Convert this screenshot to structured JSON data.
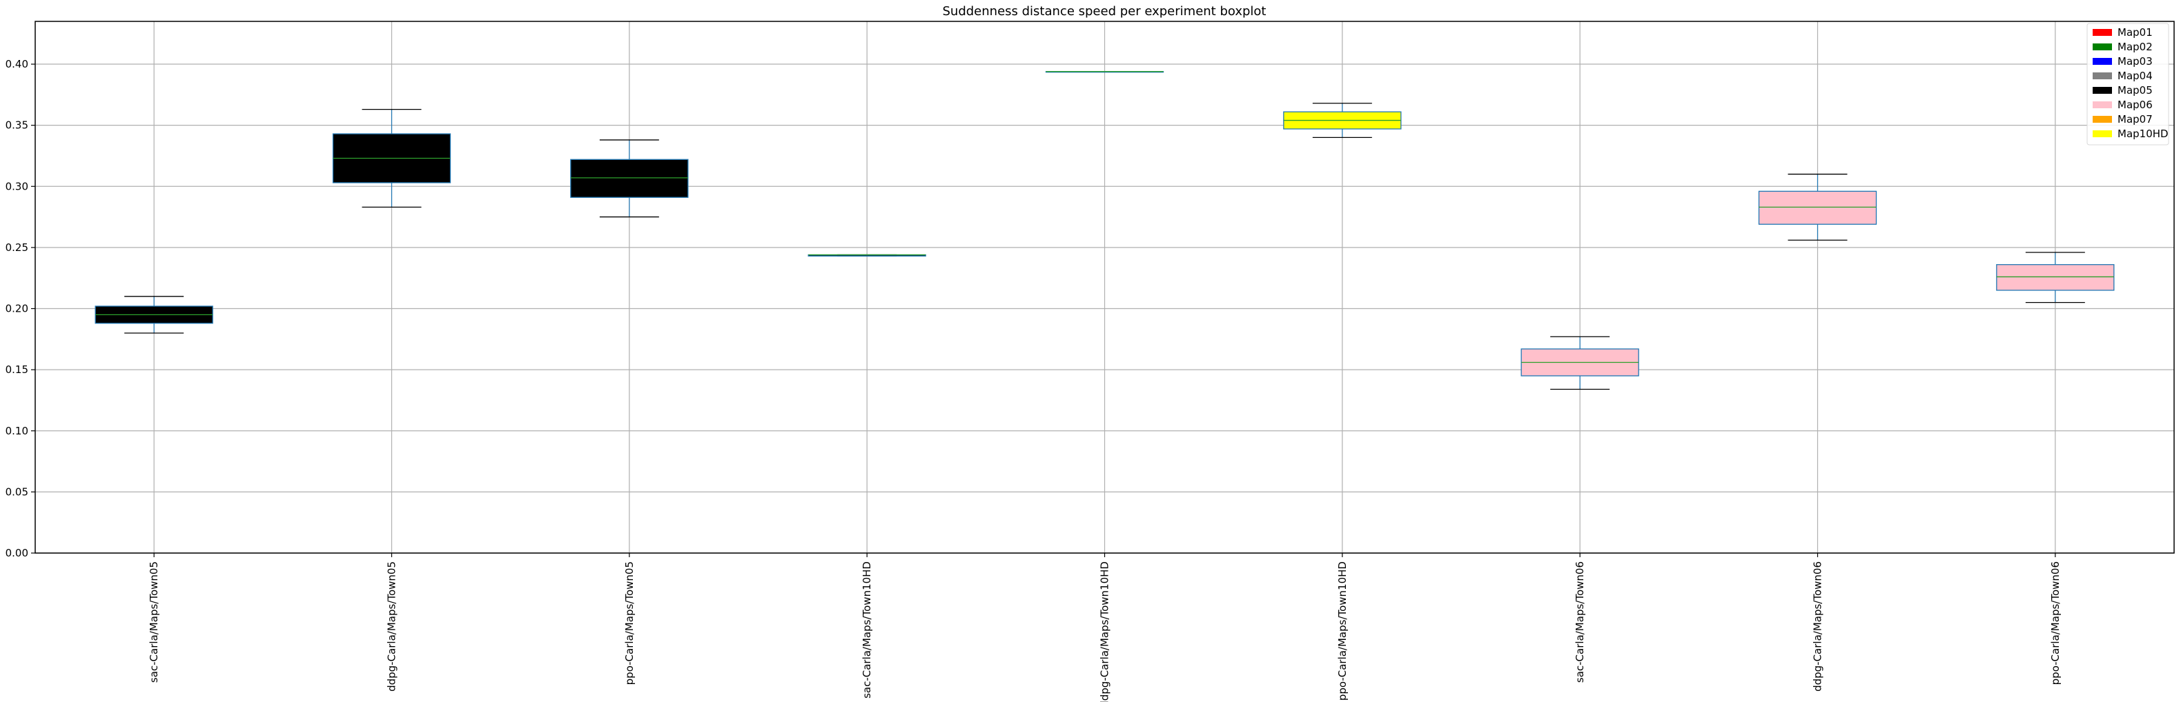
{
  "chart_data": {
    "type": "boxplot",
    "title": "Suddenness distance speed per experiment boxplot",
    "xlabel": "",
    "ylabel": "",
    "ylim": [
      0.0,
      0.435
    ],
    "yticks": [
      0.0,
      0.05,
      0.1,
      0.15,
      0.2,
      0.25,
      0.3,
      0.35,
      0.4
    ],
    "ytick_labels": [
      "0.00",
      "0.05",
      "0.10",
      "0.15",
      "0.20",
      "0.25",
      "0.30",
      "0.35",
      "0.40"
    ],
    "grid": true,
    "legend_placement": "top-right",
    "categories": [
      "sac-Carla/Maps/Town05",
      "ddpg-Carla/Maps/Town05",
      "ppo-Carla/Maps/Town05",
      "sac-Carla/Maps/Town10HD",
      "ddpg-Carla/Maps/Town10HD",
      "ppo-Carla/Maps/Town10HD",
      "sac-Carla/Maps/Town06",
      "ddpg-Carla/Maps/Town06",
      "ppo-Carla/Maps/Town06"
    ],
    "boxes": [
      {
        "whislo": 0.18,
        "q1": 0.188,
        "med": 0.195,
        "q3": 0.202,
        "whishi": 0.21,
        "fill": "#000000"
      },
      {
        "whislo": 0.283,
        "q1": 0.303,
        "med": 0.323,
        "q3": 0.343,
        "whishi": 0.363,
        "fill": "#000000"
      },
      {
        "whislo": 0.275,
        "q1": 0.291,
        "med": 0.307,
        "q3": 0.322,
        "whishi": 0.338,
        "fill": "#000000"
      },
      {
        "whislo": 0.243,
        "q1": 0.243,
        "med": 0.244,
        "q3": 0.244,
        "whishi": 0.244,
        "fill": "#000000"
      },
      {
        "whislo": 0.394,
        "q1": 0.394,
        "med": 0.394,
        "q3": 0.394,
        "whishi": 0.394,
        "fill": "#000000"
      },
      {
        "whislo": 0.34,
        "q1": 0.347,
        "med": 0.354,
        "q3": 0.361,
        "whishi": 0.368,
        "fill": "#ffff00"
      },
      {
        "whislo": 0.134,
        "q1": 0.145,
        "med": 0.156,
        "q3": 0.167,
        "whishi": 0.177,
        "fill": "#ffc0cb"
      },
      {
        "whislo": 0.256,
        "q1": 0.269,
        "med": 0.283,
        "q3": 0.296,
        "whishi": 0.31,
        "fill": "#ffc0cb"
      },
      {
        "whislo": 0.205,
        "q1": 0.215,
        "med": 0.226,
        "q3": 0.236,
        "whishi": 0.246,
        "fill": "#ffc0cb"
      }
    ],
    "colors": {
      "box_edge": "#1f77b4",
      "median": "#2ca02c",
      "whisker": "#1f77b4",
      "cap": "#000000",
      "grid": "#b0b0b0"
    },
    "legend": [
      {
        "label": "Map01",
        "color": "#ff0000"
      },
      {
        "label": "Map02",
        "color": "#008000"
      },
      {
        "label": "Map03",
        "color": "#0000ff"
      },
      {
        "label": "Map04",
        "color": "#808080"
      },
      {
        "label": "Map05",
        "color": "#000000"
      },
      {
        "label": "Map06",
        "color": "#ffc0cb"
      },
      {
        "label": "Map07",
        "color": "#ffa500"
      },
      {
        "label": "Map10HD",
        "color": "#ffff00"
      }
    ]
  }
}
